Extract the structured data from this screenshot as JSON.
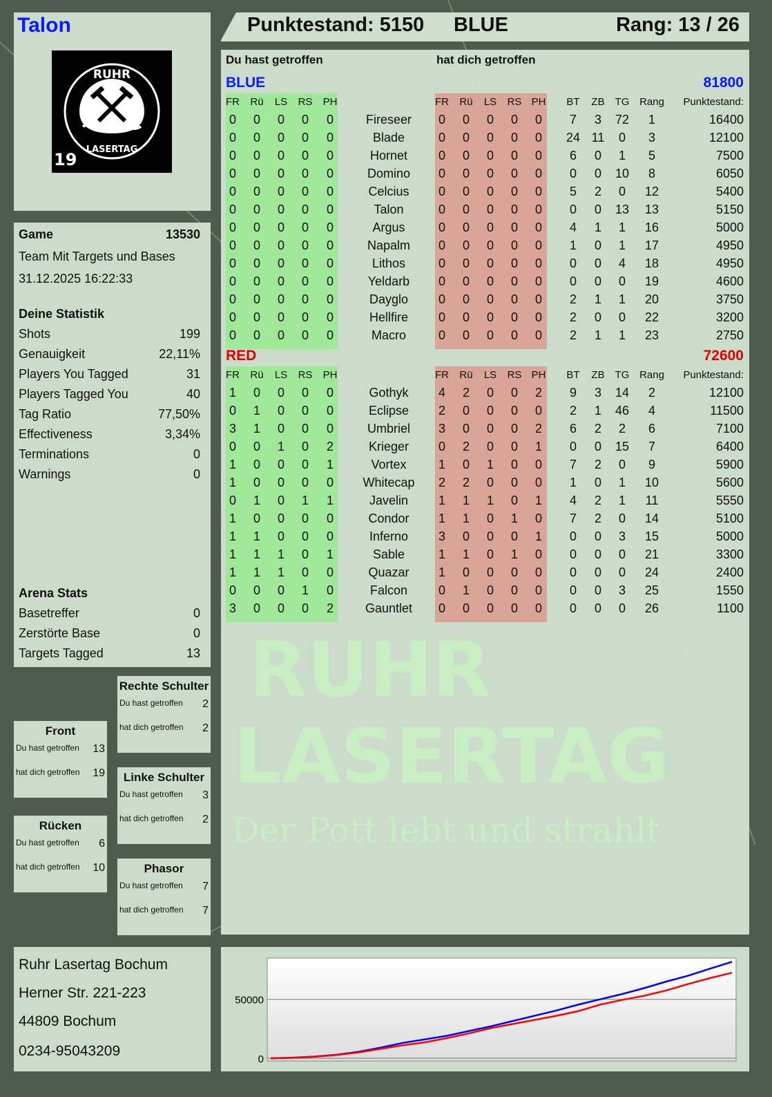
{
  "player": {
    "name": "Talon",
    "logo_text": "RUHR LASERTAG",
    "logo_number": "19"
  },
  "header": {
    "score_label": "Punktestand: 5150",
    "team": "BLUE",
    "rank_label": "Rang: 13 / 26"
  },
  "table": {
    "col_you_hit": "Du hast getroffen",
    "col_hit_you": "hat dich getroffen",
    "zone_cols": [
      "FR",
      "Rü",
      "LS",
      "RS",
      "PH"
    ],
    "stat_cols": [
      "BT",
      "ZB",
      "TG",
      "Rang",
      "Punktestand:"
    ],
    "teams": [
      {
        "name": "BLUE",
        "total": "81800",
        "color": "#0a1aff",
        "rows": [
          {
            "you": [
              0,
              0,
              0,
              0,
              0
            ],
            "name": "Fireseer",
            "them": [
              0,
              0,
              0,
              0,
              0
            ],
            "stats": [
              7,
              3,
              72,
              1,
              16400
            ]
          },
          {
            "you": [
              0,
              0,
              0,
              0,
              0
            ],
            "name": "Blade",
            "them": [
              0,
              0,
              0,
              0,
              0
            ],
            "stats": [
              24,
              11,
              0,
              3,
              12100
            ]
          },
          {
            "you": [
              0,
              0,
              0,
              0,
              0
            ],
            "name": "Hornet",
            "them": [
              0,
              0,
              0,
              0,
              0
            ],
            "stats": [
              6,
              0,
              1,
              5,
              7500
            ]
          },
          {
            "you": [
              0,
              0,
              0,
              0,
              0
            ],
            "name": "Domino",
            "them": [
              0,
              0,
              0,
              0,
              0
            ],
            "stats": [
              0,
              0,
              10,
              8,
              6050
            ]
          },
          {
            "you": [
              0,
              0,
              0,
              0,
              0
            ],
            "name": "Celcius",
            "them": [
              0,
              0,
              0,
              0,
              0
            ],
            "stats": [
              5,
              2,
              0,
              12,
              5400
            ]
          },
          {
            "you": [
              0,
              0,
              0,
              0,
              0
            ],
            "name": "Talon",
            "them": [
              0,
              0,
              0,
              0,
              0
            ],
            "stats": [
              0,
              0,
              13,
              13,
              5150
            ]
          },
          {
            "you": [
              0,
              0,
              0,
              0,
              0
            ],
            "name": "Argus",
            "them": [
              0,
              0,
              0,
              0,
              0
            ],
            "stats": [
              4,
              1,
              1,
              16,
              5000
            ]
          },
          {
            "you": [
              0,
              0,
              0,
              0,
              0
            ],
            "name": "Napalm",
            "them": [
              0,
              0,
              0,
              0,
              0
            ],
            "stats": [
              1,
              0,
              1,
              17,
              4950
            ]
          },
          {
            "you": [
              0,
              0,
              0,
              0,
              0
            ],
            "name": "Lithos",
            "them": [
              0,
              0,
              0,
              0,
              0
            ],
            "stats": [
              0,
              0,
              4,
              18,
              4950
            ]
          },
          {
            "you": [
              0,
              0,
              0,
              0,
              0
            ],
            "name": "Yeldarb",
            "them": [
              0,
              0,
              0,
              0,
              0
            ],
            "stats": [
              0,
              0,
              0,
              19,
              4600
            ]
          },
          {
            "you": [
              0,
              0,
              0,
              0,
              0
            ],
            "name": "Dayglo",
            "them": [
              0,
              0,
              0,
              0,
              0
            ],
            "stats": [
              2,
              1,
              1,
              20,
              3750
            ]
          },
          {
            "you": [
              0,
              0,
              0,
              0,
              0
            ],
            "name": "Hellfire",
            "them": [
              0,
              0,
              0,
              0,
              0
            ],
            "stats": [
              2,
              0,
              0,
              22,
              3200
            ]
          },
          {
            "you": [
              0,
              0,
              0,
              0,
              0
            ],
            "name": "Macro",
            "them": [
              0,
              0,
              0,
              0,
              0
            ],
            "stats": [
              2,
              1,
              1,
              23,
              2750
            ]
          }
        ]
      },
      {
        "name": "RED",
        "total": "72600",
        "color": "#e00000",
        "rows": [
          {
            "you": [
              1,
              0,
              0,
              0,
              0
            ],
            "name": "Gothyk",
            "them": [
              4,
              2,
              0,
              0,
              2
            ],
            "stats": [
              9,
              3,
              14,
              2,
              12100
            ]
          },
          {
            "you": [
              0,
              1,
              0,
              0,
              0
            ],
            "name": "Eclipse",
            "them": [
              2,
              0,
              0,
              0,
              0
            ],
            "stats": [
              2,
              1,
              46,
              4,
              11500
            ]
          },
          {
            "you": [
              3,
              1,
              0,
              0,
              0
            ],
            "name": "Umbriel",
            "them": [
              3,
              0,
              0,
              0,
              2
            ],
            "stats": [
              6,
              2,
              2,
              6,
              7100
            ]
          },
          {
            "you": [
              0,
              0,
              1,
              0,
              2
            ],
            "name": "Krieger",
            "them": [
              0,
              2,
              0,
              0,
              1
            ],
            "stats": [
              0,
              0,
              15,
              7,
              6400
            ]
          },
          {
            "you": [
              1,
              0,
              0,
              0,
              1
            ],
            "name": "Vortex",
            "them": [
              1,
              0,
              1,
              0,
              0
            ],
            "stats": [
              7,
              2,
              0,
              9,
              5900
            ]
          },
          {
            "you": [
              1,
              0,
              0,
              0,
              0
            ],
            "name": "Whitecap",
            "them": [
              2,
              2,
              0,
              0,
              0
            ],
            "stats": [
              1,
              0,
              1,
              10,
              5600
            ]
          },
          {
            "you": [
              0,
              1,
              0,
              1,
              1
            ],
            "name": "Javelin",
            "them": [
              1,
              1,
              1,
              0,
              1
            ],
            "stats": [
              4,
              2,
              1,
              11,
              5550
            ]
          },
          {
            "you": [
              1,
              0,
              0,
              0,
              0
            ],
            "name": "Condor",
            "them": [
              1,
              1,
              0,
              1,
              0
            ],
            "stats": [
              7,
              2,
              0,
              14,
              5100
            ]
          },
          {
            "you": [
              1,
              1,
              0,
              0,
              0
            ],
            "name": "Inferno",
            "them": [
              3,
              0,
              0,
              0,
              1
            ],
            "stats": [
              0,
              0,
              3,
              15,
              5000
            ]
          },
          {
            "you": [
              1,
              1,
              1,
              0,
              1
            ],
            "name": "Sable",
            "them": [
              1,
              1,
              0,
              1,
              0
            ],
            "stats": [
              0,
              0,
              0,
              21,
              3300
            ]
          },
          {
            "you": [
              1,
              1,
              1,
              0,
              0
            ],
            "name": "Quazar",
            "them": [
              1,
              0,
              0,
              0,
              0
            ],
            "stats": [
              0,
              0,
              0,
              24,
              2400
            ]
          },
          {
            "you": [
              0,
              0,
              0,
              1,
              0
            ],
            "name": "Falcon",
            "them": [
              0,
              1,
              0,
              0,
              0
            ],
            "stats": [
              0,
              0,
              3,
              25,
              1550
            ]
          },
          {
            "you": [
              3,
              0,
              0,
              0,
              2
            ],
            "name": "Gauntlet",
            "them": [
              0,
              0,
              0,
              0,
              0
            ],
            "stats": [
              0,
              0,
              0,
              26,
              1100
            ]
          }
        ]
      }
    ]
  },
  "game": {
    "label": "Game",
    "id": "13530",
    "mode": "Team Mit Targets und Bases",
    "datetime": "31.12.2025 16:22:33"
  },
  "stats": {
    "title": "Deine Statistik",
    "rows": [
      [
        "Shots",
        "199"
      ],
      [
        "Genauigkeit",
        "22,11%"
      ],
      [
        "Players You Tagged",
        "31"
      ],
      [
        "Players Tagged You",
        "40"
      ],
      [
        "Tag Ratio",
        "77,50%"
      ],
      [
        "Effectiveness",
        "3,34%"
      ],
      [
        "Terminations",
        "0"
      ],
      [
        "Warnings",
        "0"
      ]
    ]
  },
  "arena": {
    "title": "Arena Stats",
    "rows": [
      [
        "Basetreffer",
        "0"
      ],
      [
        "Zerstörte Base",
        "0"
      ],
      [
        "Targets Tagged",
        "13"
      ]
    ]
  },
  "zones": [
    {
      "title": "Rechte Schulter",
      "you": "2",
      "them": "2"
    },
    {
      "title": "Front",
      "you": "13",
      "them": "19"
    },
    {
      "title": "Linke Schulter",
      "you": "3",
      "them": "2"
    },
    {
      "title": "Rücken",
      "you": "6",
      "them": "10"
    },
    {
      "title": "Phasor",
      "you": "7",
      "them": "7"
    }
  ],
  "zone_labels": {
    "you": "Du hast getroffen",
    "them": "hat dich getroffen"
  },
  "address": [
    "Ruhr Lasertag Bochum",
    "Herner Str. 221-223",
    "44809 Bochum",
    "0234-95043209"
  ],
  "watermark": {
    "line1": "RUHR",
    "line2": "LASERTAG",
    "slogan": "Der Pott lebt und strahlt"
  },
  "chart_data": {
    "type": "line",
    "ylim": [
      0,
      85000
    ],
    "yticks": [
      0,
      50000
    ],
    "tick_labels": [
      "0",
      "50000"
    ],
    "grid": true,
    "legend": "none",
    "series": [
      {
        "color": "#0000ff",
        "values": [
          0,
          500,
          1500,
          3000,
          5500,
          9000,
          13000,
          16000,
          19000,
          23000,
          27000,
          31500,
          36000,
          40500,
          45500,
          50000,
          54500,
          59500,
          65000,
          70000,
          76000,
          81800
        ]
      },
      {
        "color": "#ff0000",
        "values": [
          0,
          400,
          1300,
          2800,
          5000,
          8000,
          11000,
          13500,
          17000,
          21000,
          25500,
          29000,
          32500,
          36000,
          40000,
          45500,
          49500,
          53000,
          57500,
          63000,
          68000,
          72600
        ]
      }
    ]
  }
}
